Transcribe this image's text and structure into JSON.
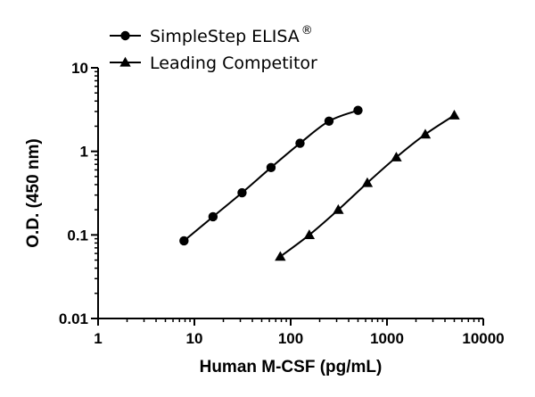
{
  "chart_data": {
    "type": "scatter",
    "title": "",
    "xlabel": "Human M-CSF (pg/mL)",
    "ylabel": "O.D. (450 nm)",
    "x_scale": "log",
    "y_scale": "log",
    "xlim": [
      1,
      10000
    ],
    "ylim": [
      0.01,
      10
    ],
    "x_ticks": [
      1,
      10,
      100,
      1000,
      10000
    ],
    "x_tick_labels": [
      "1",
      "10",
      "100",
      "1000",
      "10000"
    ],
    "y_ticks": [
      0.01,
      0.1,
      1,
      10
    ],
    "y_tick_labels": [
      "0.01",
      "0.1",
      "1",
      "10"
    ],
    "grid": false,
    "legend_position": "top-left",
    "series": [
      {
        "name": "SimpleStep ELISA",
        "name_superscript": "®",
        "marker": "circle",
        "color": "#000000",
        "x": [
          7.8,
          15.6,
          31.25,
          62.5,
          125,
          250,
          500
        ],
        "y": [
          0.085,
          0.165,
          0.32,
          0.64,
          1.25,
          2.3,
          3.1
        ]
      },
      {
        "name": "Leading Competitor",
        "marker": "triangle",
        "color": "#000000",
        "x": [
          78,
          156,
          312,
          625,
          1250,
          2500,
          5000
        ],
        "y": [
          0.055,
          0.1,
          0.2,
          0.42,
          0.85,
          1.6,
          2.7
        ]
      }
    ]
  }
}
